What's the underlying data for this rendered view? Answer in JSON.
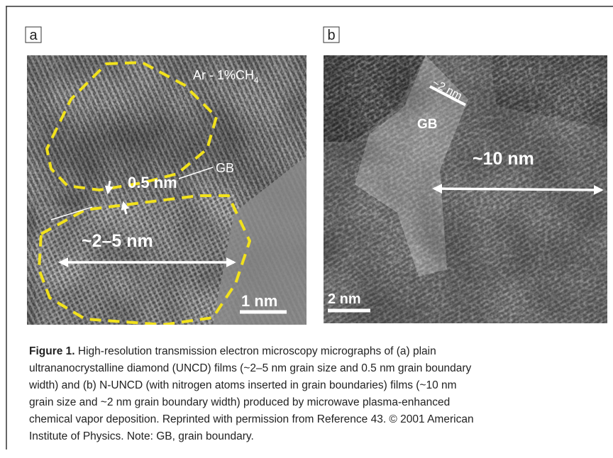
{
  "figure": {
    "panels": [
      {
        "label": "a",
        "condition": "Ar - 1%CH",
        "condition_subscript": "4",
        "boundary_width": "0.5 nm",
        "boundary_label": "GB",
        "grain_size": "~2–5 nm",
        "scale_bar": "1 nm"
      },
      {
        "label": "b",
        "boundary_width": "~2 nm",
        "boundary_label": "GB",
        "grain_size": "~10 nm",
        "scale_bar": "2 nm"
      }
    ],
    "caption": {
      "label": "Figure 1.",
      "lines": [
        "High-resolution transmission electron microscopy micrographs of (a) plain",
        "ultrananocrystalline diamond (UNCD) films (~2–5 nm grain size and 0.5 nm grain boundary",
        "width) and (b) N-UNCD (with nitrogen atoms inserted in grain boundaries) films (~10 nm",
        "grain size and ~2 nm grain boundary width) produced by microwave plasma-enhanced",
        "chemical vapor deposition. Reprinted with permission from Reference 43. © 2001 American",
        "Institute of Physics. Note: GB, grain boundary."
      ]
    }
  }
}
